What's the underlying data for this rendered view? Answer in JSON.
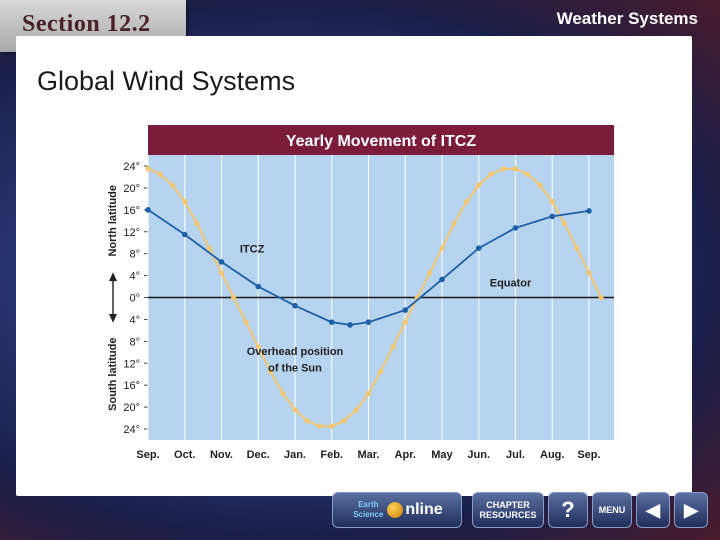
{
  "header": {
    "section": "Section 12.2",
    "topic": "Weather Systems"
  },
  "page": {
    "title": "Global Wind Systems"
  },
  "footer": {
    "earth_science": "Earth Science",
    "online": "nline",
    "chapter_resources": "CHAPTER RESOURCES",
    "help": "?",
    "menu": "MENU",
    "prev": "◀",
    "next": "▶"
  },
  "chart_data": {
    "type": "line",
    "title": "Yearly Movement of ITCZ",
    "x_ticks": [
      "Sep.",
      "Oct.",
      "Nov.",
      "Dec.",
      "Jan.",
      "Feb.",
      "Mar.",
      "Apr.",
      "May",
      "Jun.",
      "Jul.",
      "Aug.",
      "Sep."
    ],
    "y_ticks": [
      "24°",
      "20°",
      "16°",
      "12°",
      "8°",
      "4°",
      "0°",
      "4°",
      "8°",
      "12°",
      "16°",
      "20°",
      "24°"
    ],
    "ylim": [
      -24,
      24
    ],
    "ylabel_top": "North latitude",
    "ylabel_bottom": "South latitude",
    "series": [
      {
        "name": "ITCZ",
        "color": "#1f5fa5",
        "points": [
          [
            0,
            16
          ],
          [
            1,
            11.5
          ],
          [
            2,
            6.5
          ],
          [
            3,
            2
          ],
          [
            4,
            -1.5
          ],
          [
            5,
            -4.5
          ],
          [
            5.5,
            -5
          ],
          [
            6,
            -4.5
          ],
          [
            7,
            -2.3
          ],
          [
            8,
            3.3
          ],
          [
            9,
            9
          ],
          [
            10,
            12.7
          ],
          [
            11,
            14.8
          ],
          [
            12,
            15.8
          ]
        ]
      },
      {
        "name": "Overhead position of the Sun",
        "color": "#f5c66e",
        "points": [
          [
            0,
            23.5
          ],
          [
            0.33,
            22.5
          ],
          [
            0.67,
            20.5
          ],
          [
            1,
            17.5
          ],
          [
            1.33,
            13.5
          ],
          [
            1.67,
            9
          ],
          [
            2,
            4.5
          ],
          [
            2.33,
            0
          ],
          [
            2.67,
            -4.5
          ],
          [
            3,
            -9
          ],
          [
            3.33,
            -13.5
          ],
          [
            3.67,
            -17.5
          ],
          [
            4,
            -20.5
          ],
          [
            4.33,
            -22.5
          ],
          [
            4.67,
            -23.5
          ],
          [
            5,
            -23.5
          ],
          [
            5.33,
            -22.5
          ],
          [
            5.67,
            -20.5
          ],
          [
            6,
            -17.5
          ],
          [
            6.33,
            -13.5
          ],
          [
            6.67,
            -9
          ],
          [
            7,
            -4.5
          ],
          [
            7.33,
            0
          ],
          [
            7.67,
            4.5
          ],
          [
            8,
            9
          ],
          [
            8.33,
            13.5
          ],
          [
            8.67,
            17.5
          ],
          [
            9,
            20.5
          ],
          [
            9.33,
            22.5
          ],
          [
            9.67,
            23.5
          ],
          [
            10,
            23.5
          ],
          [
            10.33,
            22.5
          ],
          [
            10.67,
            20.5
          ],
          [
            11,
            17.5
          ],
          [
            11.33,
            13.5
          ],
          [
            11.67,
            9
          ],
          [
            12,
            4.5
          ],
          [
            12.33,
            0
          ]
        ]
      }
    ],
    "labels": {
      "itcz": "ITCZ",
      "equator": "Equator",
      "sun_line1": "Overhead position",
      "sun_line2": "of the Sun"
    },
    "equator_color": "#1a1a1a",
    "plot_bg": "#b6d4ef",
    "title_bg": "#7a1c3a"
  }
}
